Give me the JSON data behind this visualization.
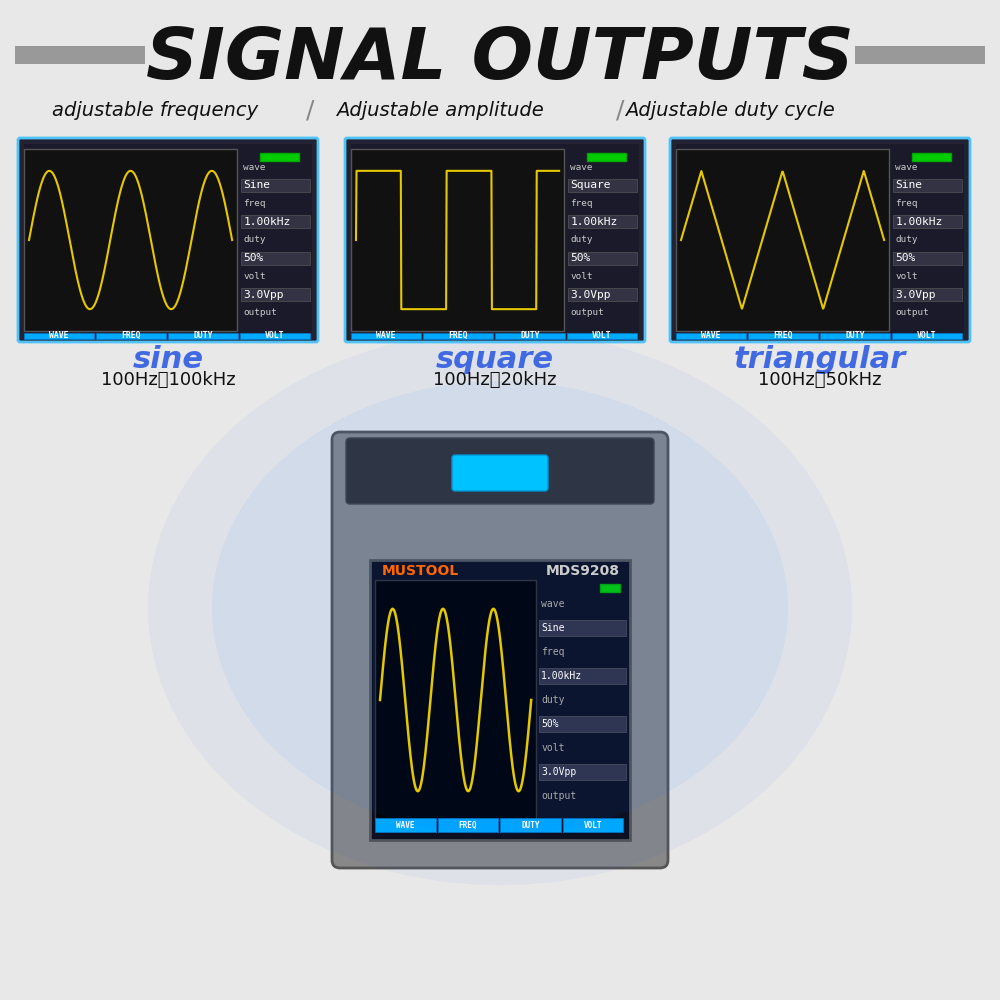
{
  "bg_color": "#e8e8e8",
  "title": "SIGNAL OUTPUTS",
  "title_fontsize": 52,
  "subtitle_items": [
    "adjustable frequency",
    "Adjustable amplitude",
    "Adjustable duty cycle"
  ],
  "subtitle_fontsize": 16,
  "wave_names": [
    "sine",
    "square",
    "triangular"
  ],
  "wave_labels": [
    "sine",
    "square",
    "triangular"
  ],
  "wave_freqs": [
    "100Hz～100kHz",
    "100Hz～20kHz",
    "100Hz～50kHz"
  ],
  "wave_label_color": "#4169e1",
  "wave_freq_color": "#111111",
  "screen_bg": "#111111",
  "wave_color": "#e6c800",
  "panel_bg": "#1a1a2e",
  "sidebar_bg": "#2a2a2a",
  "sidebar_text": "#ffffff",
  "button_color": "#00aaff",
  "battery_color": "#00cc00",
  "screen_border": "#4fc3f7",
  "device_color": "#888888",
  "device_screen_bg": "#0a0a1a",
  "device_wave_color": "#e6c800",
  "mustool_color_hex": "#ff6600",
  "device_model": "MDS9208",
  "device_brand": "MUSTOOL",
  "sidebar_labels": [
    "wave",
    "Sine",
    "freq",
    "1.00kHz",
    "duty",
    "50%",
    "volt",
    "3.0Vpp",
    "output"
  ],
  "buttons": [
    "WAVE",
    "FREQ",
    "DUTY",
    "VOLT"
  ],
  "stripe_color": "#999999"
}
